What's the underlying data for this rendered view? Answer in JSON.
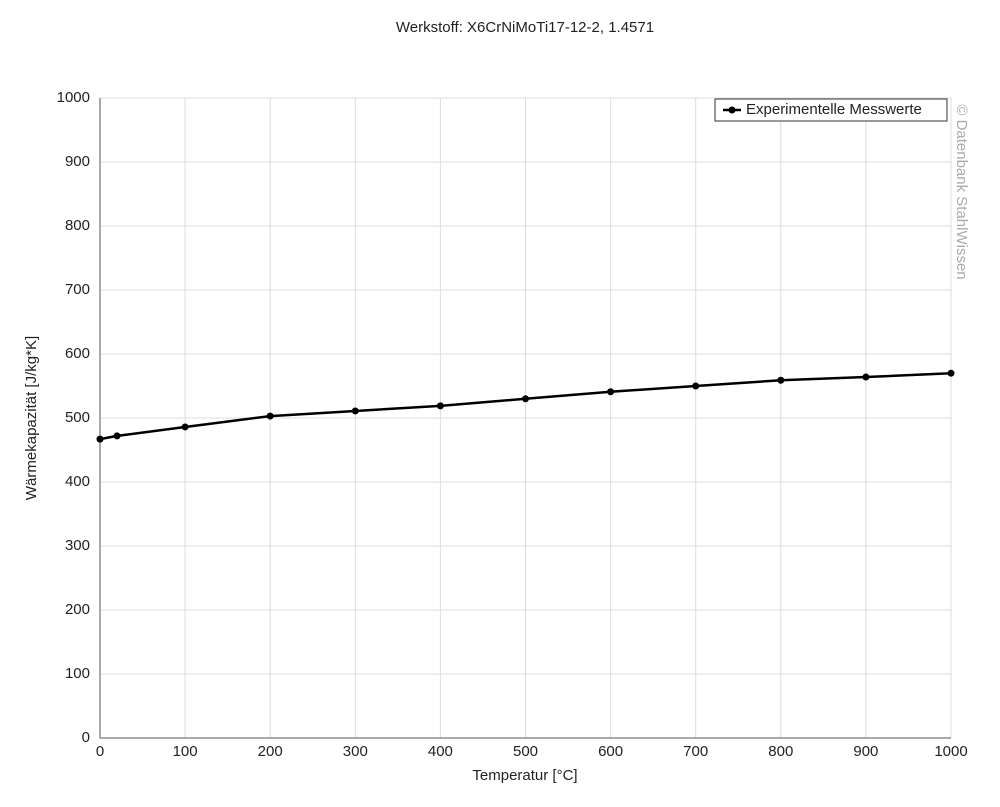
{
  "chart_data": {
    "type": "line",
    "title": "Werkstoff: X6CrNiMoTi17-12-2, 1.4571",
    "x_label": "Temperatur [°C]",
    "y_label": "Wärmekapazität [J/kg*K]",
    "watermark": "© Datenbank StahlWissen",
    "x": [
      0,
      20,
      100,
      200,
      300,
      400,
      500,
      600,
      700,
      800,
      900,
      1000
    ],
    "series": [
      {
        "name": "Experimentelle Messwerte",
        "color": "#000000",
        "values": [
          467,
          472,
          486,
          503,
          511,
          519,
          530,
          541,
          550,
          559,
          564,
          570
        ]
      }
    ],
    "xlim": [
      0,
      1000
    ],
    "xticks": [
      0,
      100,
      200,
      300,
      400,
      500,
      600,
      700,
      800,
      900,
      1000
    ],
    "ylim": [
      0,
      1000
    ],
    "yticks": [
      0,
      100,
      200,
      300,
      400,
      500,
      600,
      700,
      800,
      900,
      1000
    ],
    "grid": true,
    "legend": "top-right"
  }
}
